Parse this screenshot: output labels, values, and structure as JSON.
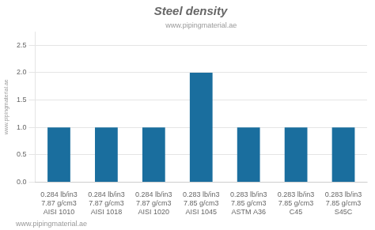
{
  "chart_data": {
    "type": "bar",
    "title": "Steel density",
    "categories": [
      "AISI 1010",
      "AISI 1018",
      "AISI 1020",
      "AISI 1045",
      "ASTM A36",
      "C45",
      "S45C"
    ],
    "values": [
      1,
      1,
      1,
      2,
      1,
      1,
      1
    ],
    "density_lbin3": [
      "0.284 lb/in3",
      "0.284 lb/in3",
      "0.284 lb/in3",
      "0.283 lb/in3",
      "0.283 lb/in3",
      "0.283 lb/in3",
      "0.283 lb/in3"
    ],
    "density_gcm3": [
      "7.87 g/cm3",
      "7.87 g/cm3",
      "7.87 g/cm3",
      "7.85 g/cm3",
      "7.85 g/cm3",
      "7.85 g/cm3",
      "7.85 g/cm3"
    ],
    "color": "#1a6e9e",
    "ylim": [
      0,
      2.75
    ],
    "yticks": [
      {
        "value": 0,
        "label": "0.0"
      },
      {
        "value": 0.5,
        "label": "0.5"
      },
      {
        "value": 1,
        "label": "1.0"
      },
      {
        "value": 1.5,
        "label": "1.5"
      },
      {
        "value": 2,
        "label": "2.0"
      },
      {
        "value": 2.5,
        "label": "2.5"
      }
    ],
    "grid": true,
    "annotations": [
      "www.pipingmaterial.ae",
      "www.pipingmaterial.ae",
      "www.pipingmaterial.ae"
    ]
  }
}
